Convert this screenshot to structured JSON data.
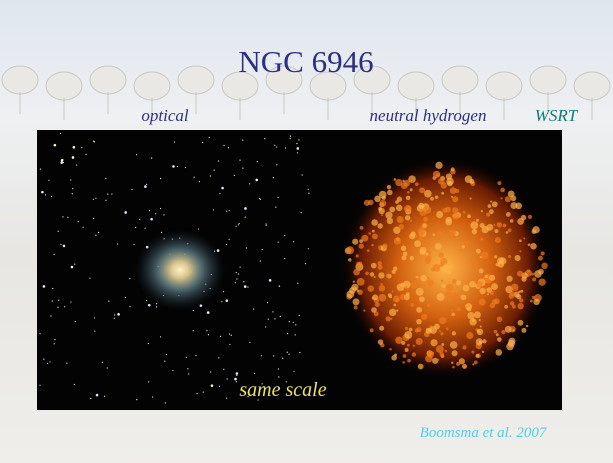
{
  "slide": {
    "title": "NGC 6946",
    "labels": {
      "optical": "optical",
      "hydrogen": "neutral hydrogen",
      "telescope": "WSRT"
    },
    "caption": "same scale",
    "credit": "Boomsma et al. 2007"
  }
}
